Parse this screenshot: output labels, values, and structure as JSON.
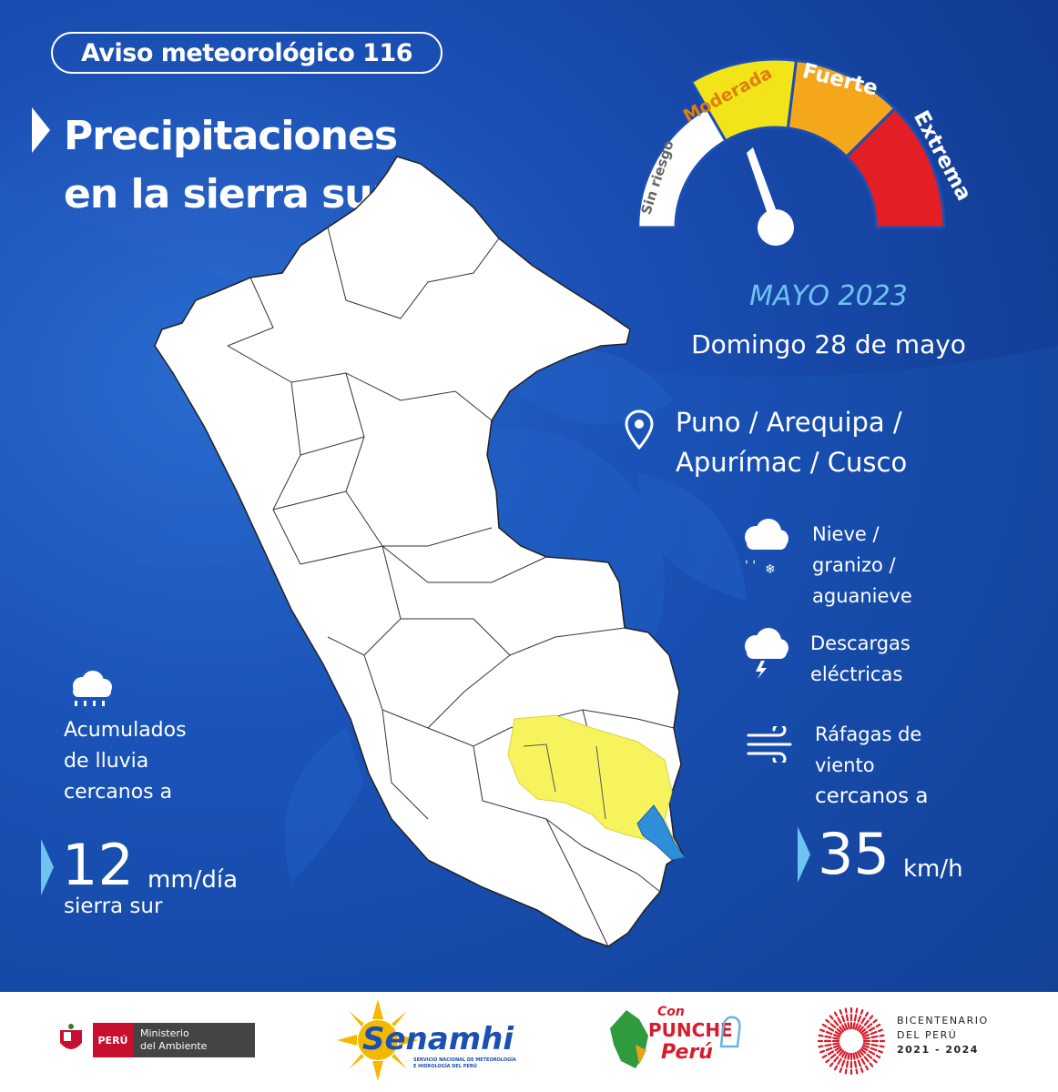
{
  "header": {
    "badge": "Aviso meteorológico 116",
    "title_line1": "Precipitaciones",
    "title_line2": "en la sierra sur"
  },
  "gauge": {
    "levels": [
      "Sin riesgo",
      "Moderada",
      "Fuerte",
      "Extrema"
    ],
    "colors": [
      "#ffffff",
      "#f2e419",
      "#f5a71b",
      "#e31e24"
    ],
    "selected_level": "Moderada"
  },
  "period": {
    "month": "MAYO 2023",
    "day": "Domingo 28 de mayo"
  },
  "location": {
    "line1": "Puno / Arequipa /",
    "line2": "Apurímac / Cusco"
  },
  "phenomena": [
    {
      "icon": "snow-hail-cloud-icon",
      "lines": [
        "Nieve /",
        "granizo /",
        "aguanieve"
      ]
    },
    {
      "icon": "thunderstorm-cloud-icon",
      "lines": [
        "Descargas",
        "eléctricas"
      ]
    },
    {
      "icon": "wind-icon",
      "lines": [
        "Ráfagas de",
        "viento",
        "cercanos a"
      ]
    }
  ],
  "wind": {
    "value": "35",
    "unit": "km/h"
  },
  "rain": {
    "lines": [
      "Acumulados",
      "de lluvia",
      "cercanos a"
    ],
    "value": "12",
    "unit": "mm/día",
    "region": "sierra sur"
  },
  "map": {
    "alert_color": "#f7f35c",
    "lake_color": "#2e8fd8"
  },
  "footer": {
    "peru": "PERÚ",
    "ministry_line1": "Ministerio",
    "ministry_line2": "del Ambiente",
    "senamhi": "Senamhi",
    "senamhi_sub1": "SERVICIO NACIONAL DE METEOROLOGÍA",
    "senamhi_sub2": "E HIDROLOGÍA DEL PERÚ",
    "punche_con": "Con",
    "punche": "PUNCHE",
    "punche_peru": "Perú",
    "bicentenario_line1": "BICENTENARIO",
    "bicentenario_line2": "DEL PERÚ",
    "bicentenario_years": "2021 - 2024"
  }
}
